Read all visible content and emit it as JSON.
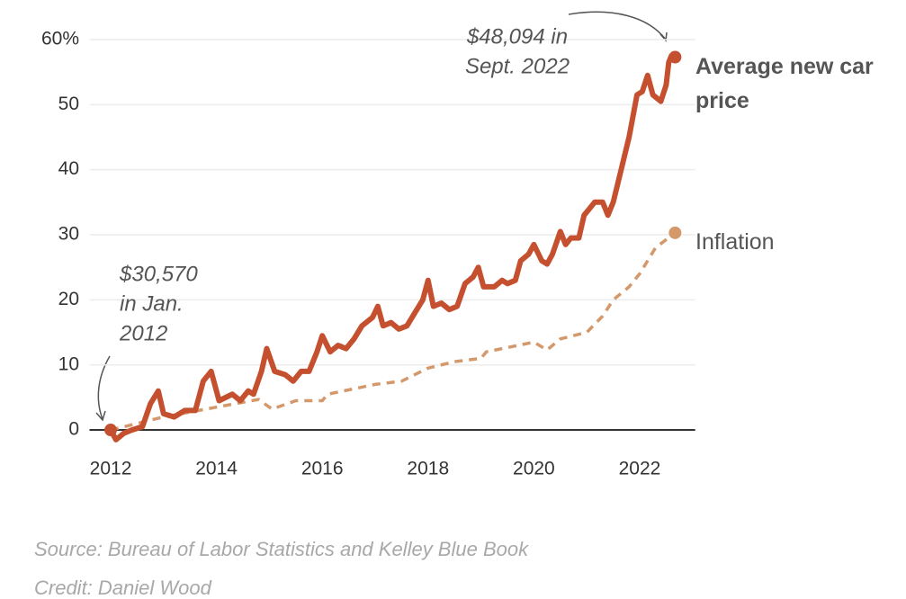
{
  "chart_data": {
    "type": "line",
    "xlim": [
      2011.6,
      2023.05
    ],
    "xticks": [
      2012,
      2014,
      2016,
      2018,
      2020,
      2022
    ],
    "ylim": [
      -4,
      62
    ],
    "yticks": [
      0,
      10,
      20,
      30,
      40,
      50,
      {
        "value": 60,
        "label": "60%"
      }
    ],
    "grid": true,
    "series": [
      {
        "name": "Average new car price",
        "color": "#c5502f",
        "dashed": false,
        "x": [
          2012,
          2012.1,
          2012.25,
          2012.4,
          2012.6,
          2012.75,
          2012.9,
          2013.0,
          2013.2,
          2013.4,
          2013.6,
          2013.75,
          2013.9,
          2014.05,
          2014.3,
          2014.45,
          2014.6,
          2014.7,
          2014.85,
          2014.95,
          2015.1,
          2015.3,
          2015.45,
          2015.6,
          2015.75,
          2015.9,
          2016.0,
          2016.15,
          2016.3,
          2016.45,
          2016.6,
          2016.75,
          2016.95,
          2017.05,
          2017.15,
          2017.3,
          2017.45,
          2017.6,
          2017.75,
          2017.9,
          2018.0,
          2018.1,
          2018.25,
          2018.4,
          2018.55,
          2018.7,
          2018.85,
          2018.95,
          2019.05,
          2019.25,
          2019.4,
          2019.5,
          2019.65,
          2019.75,
          2019.9,
          2020.0,
          2020.15,
          2020.25,
          2020.35,
          2020.5,
          2020.6,
          2020.7,
          2020.85,
          2020.95,
          2021.05,
          2021.15,
          2021.3,
          2021.4,
          2021.5,
          2021.65,
          2021.8,
          2021.95,
          2022.05,
          2022.15,
          2022.25,
          2022.4,
          2022.5,
          2022.55,
          2022.6,
          2022.67
        ],
        "values": [
          0,
          -1.5,
          -0.5,
          0,
          0.5,
          4,
          6,
          2.5,
          2,
          3,
          3,
          7.5,
          9,
          4.5,
          5.5,
          4.5,
          6,
          5.5,
          9,
          12.5,
          9,
          8.5,
          7.5,
          9,
          9,
          12,
          14.5,
          12,
          13,
          12.5,
          14,
          16,
          17.3,
          19,
          16,
          16.5,
          15.5,
          16,
          18,
          20,
          23,
          19,
          19.5,
          18.5,
          19,
          22.5,
          23.5,
          25,
          22,
          22,
          23,
          22.5,
          23,
          26,
          27,
          28.5,
          26,
          25.5,
          27,
          30.5,
          28.5,
          29.5,
          29.5,
          33,
          34,
          35,
          35,
          33,
          35,
          40,
          45,
          51.5,
          52,
          54.5,
          51.5,
          50.5,
          53,
          56.5,
          57.5,
          57.3
        ]
      },
      {
        "name": "Inflation",
        "color": "#d4986a",
        "dashed": true,
        "x": [
          2012,
          2013,
          2014,
          2014.8,
          2015.05,
          2015.5,
          2016,
          2016.1,
          2017,
          2017.5,
          2018,
          2018.5,
          2019,
          2019.1,
          2020,
          2020.25,
          2020.5,
          2021,
          2021.3,
          2021.5,
          2021.8,
          2022,
          2022.3,
          2022.67
        ],
        "values": [
          0,
          2,
          3.5,
          4.7,
          3.2,
          4.5,
          4.5,
          5.5,
          7,
          7.5,
          9.5,
          10.5,
          11,
          12,
          13.5,
          12.3,
          14,
          15,
          17.5,
          20,
          22,
          24,
          28,
          30.3
        ]
      }
    ],
    "annotations": [
      {
        "lines": [
          "$48,094 in",
          "Sept. 2022"
        ]
      },
      {
        "lines": [
          "$30,570",
          "in Jan.",
          "2012"
        ]
      }
    ],
    "source": "Source: Bureau of Labor Statistics and Kelley Blue Book",
    "credit": "Credit: Daniel Wood"
  }
}
